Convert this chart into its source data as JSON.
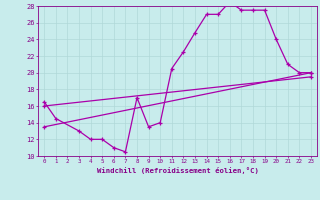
{
  "xlabel": "Windchill (Refroidissement éolien,°C)",
  "bg_color": "#c8ecec",
  "line_color": "#aa00aa",
  "grid_color": "#b0d8d8",
  "axis_color": "#880088",
  "tick_color": "#880088",
  "xlim": [
    -0.5,
    23.5
  ],
  "ylim": [
    10,
    28
  ],
  "xticks": [
    0,
    1,
    2,
    3,
    4,
    5,
    6,
    7,
    8,
    9,
    10,
    11,
    12,
    13,
    14,
    15,
    16,
    17,
    18,
    19,
    20,
    21,
    22,
    23
  ],
  "yticks": [
    10,
    12,
    14,
    16,
    18,
    20,
    22,
    24,
    26,
    28
  ],
  "curve_x": [
    0,
    1,
    3,
    4,
    5,
    6,
    7,
    8,
    9,
    10,
    11,
    12,
    13,
    14,
    15,
    16,
    17,
    18,
    19,
    20,
    21,
    22,
    23
  ],
  "curve_y": [
    16.5,
    14.5,
    13.0,
    12.0,
    12.0,
    11.0,
    10.5,
    17.0,
    13.5,
    14.0,
    20.5,
    22.5,
    24.8,
    27.0,
    27.0,
    28.5,
    27.5,
    27.5,
    27.5,
    24.0,
    21.0,
    20.0,
    20.0
  ],
  "line1_x": [
    0,
    23
  ],
  "line1_y": [
    13.5,
    20.0
  ],
  "line2_x": [
    0,
    23
  ],
  "line2_y": [
    16.0,
    19.5
  ],
  "linewidth": 0.9,
  "markersize": 3.5
}
